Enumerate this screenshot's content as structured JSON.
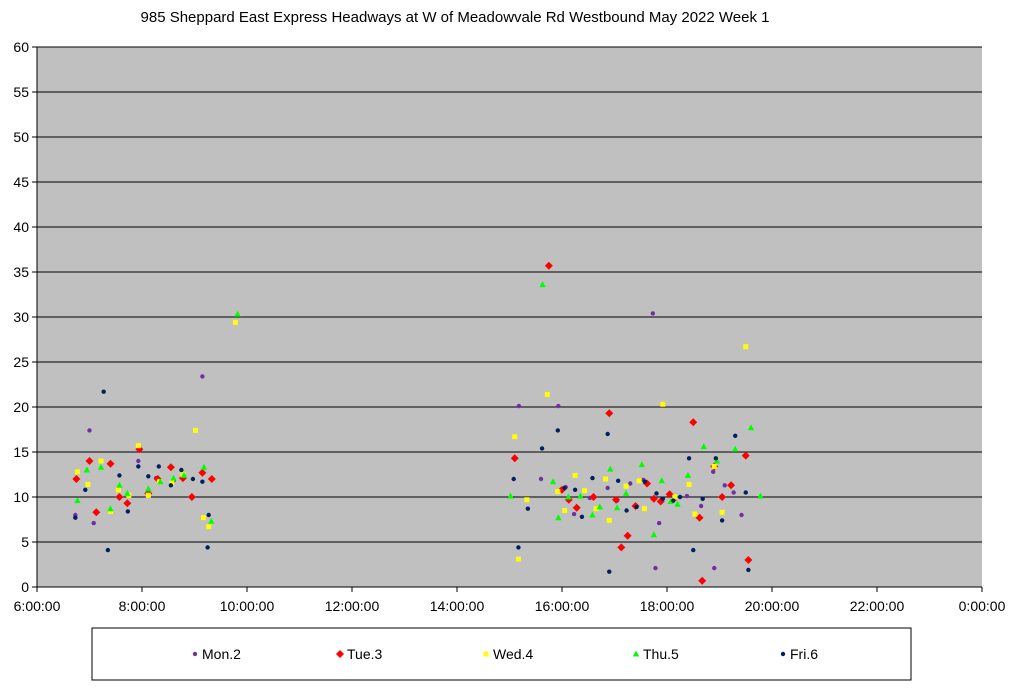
{
  "chart_data": {
    "type": "scatter",
    "title": "985 Sheppard East Express Headways at W of Meadowvale Rd Westbound May 2022  Week 1",
    "xlabel": "",
    "ylabel": "",
    "x_unit": "hours of day",
    "xlim": [
      6,
      24
    ],
    "ylim": [
      0,
      60
    ],
    "x_tick_values": [
      6,
      8,
      10,
      12,
      14,
      16,
      18,
      20,
      22,
      24
    ],
    "x_tick_labels": [
      "6:00:00",
      "8:00:00",
      "10:00:00",
      "12:00:00",
      "14:00:00",
      "16:00:00",
      "18:00:00",
      "20:00:00",
      "22:00:00",
      "0:00:00"
    ],
    "y_tick_values": [
      0,
      5,
      10,
      15,
      20,
      25,
      30,
      35,
      40,
      45,
      50,
      55,
      60
    ],
    "y_tick_labels": [
      "0",
      "5",
      "10",
      "15",
      "20",
      "25",
      "30",
      "35",
      "40",
      "45",
      "50",
      "55",
      "60"
    ],
    "grid": true,
    "legend_position": "bottom",
    "plot_background": "#c0c0c0",
    "series": [
      {
        "name": "Mon.2",
        "color": "#7030a0",
        "marker": "circle",
        "points": [
          [
            6.73,
            8.0
          ],
          [
            7.0,
            17.4
          ],
          [
            7.08,
            7.1
          ],
          [
            7.93,
            14.0
          ],
          [
            8.27,
            12.1
          ],
          [
            8.6,
            11.8
          ],
          [
            9.15,
            23.4
          ],
          [
            15.18,
            20.1
          ],
          [
            15.6,
            12.0
          ],
          [
            15.93,
            20.1
          ],
          [
            16.07,
            11.1
          ],
          [
            16.23,
            8.1
          ],
          [
            16.53,
            9.9
          ],
          [
            16.87,
            11.0
          ],
          [
            17.05,
            9.6
          ],
          [
            17.3,
            11.5
          ],
          [
            17.55,
            11.9
          ],
          [
            17.73,
            30.4
          ],
          [
            17.78,
            2.1
          ],
          [
            17.85,
            7.1
          ],
          [
            18.15,
            9.8
          ],
          [
            18.38,
            10.1
          ],
          [
            18.65,
            9.0
          ],
          [
            18.88,
            12.8
          ],
          [
            18.9,
            2.1
          ],
          [
            19.1,
            11.3
          ],
          [
            19.27,
            10.5
          ],
          [
            19.42,
            8.0
          ]
        ]
      },
      {
        "name": "Tue.3",
        "color": "#ff0000",
        "marker": "diamond",
        "points": [
          [
            6.75,
            12.0
          ],
          [
            7.0,
            14.0
          ],
          [
            7.13,
            8.3
          ],
          [
            7.4,
            13.7
          ],
          [
            7.57,
            10.0
          ],
          [
            7.72,
            9.3
          ],
          [
            7.95,
            15.3
          ],
          [
            8.12,
            10.4
          ],
          [
            8.3,
            12.0
          ],
          [
            8.55,
            13.3
          ],
          [
            8.78,
            12.1
          ],
          [
            8.95,
            10.0
          ],
          [
            9.15,
            12.7
          ],
          [
            9.33,
            12.0
          ],
          [
            15.1,
            14.3
          ],
          [
            15.75,
            35.7
          ],
          [
            16.0,
            10.8
          ],
          [
            16.13,
            9.7
          ],
          [
            16.28,
            8.8
          ],
          [
            16.6,
            10.0
          ],
          [
            16.9,
            19.3
          ],
          [
            17.03,
            9.7
          ],
          [
            17.13,
            4.4
          ],
          [
            17.25,
            5.7
          ],
          [
            17.4,
            9.0
          ],
          [
            17.62,
            11.5
          ],
          [
            17.75,
            9.8
          ],
          [
            17.88,
            9.5
          ],
          [
            18.05,
            10.3
          ],
          [
            18.5,
            18.3
          ],
          [
            18.62,
            7.7
          ],
          [
            18.67,
            0.7
          ],
          [
            18.9,
            13.4
          ],
          [
            19.05,
            10.0
          ],
          [
            19.22,
            11.3
          ],
          [
            19.5,
            14.6
          ],
          [
            19.55,
            3.0
          ]
        ]
      },
      {
        "name": "Wed.4",
        "color": "#ffff00",
        "marker": "square",
        "points": [
          [
            6.77,
            12.8
          ],
          [
            6.97,
            11.4
          ],
          [
            7.22,
            14.0
          ],
          [
            7.4,
            8.4
          ],
          [
            7.55,
            10.8
          ],
          [
            7.75,
            10.2
          ],
          [
            7.93,
            15.7
          ],
          [
            8.12,
            10.2
          ],
          [
            8.33,
            11.7
          ],
          [
            8.57,
            11.6
          ],
          [
            8.78,
            12.5
          ],
          [
            9.02,
            17.4
          ],
          [
            9.17,
            7.7
          ],
          [
            9.27,
            6.7
          ],
          [
            9.78,
            29.4
          ],
          [
            15.1,
            16.7
          ],
          [
            15.17,
            3.1
          ],
          [
            15.33,
            9.7
          ],
          [
            15.72,
            21.4
          ],
          [
            15.92,
            10.6
          ],
          [
            16.05,
            8.5
          ],
          [
            16.25,
            12.4
          ],
          [
            16.43,
            10.7
          ],
          [
            16.65,
            8.7
          ],
          [
            16.83,
            12.0
          ],
          [
            16.9,
            7.4
          ],
          [
            17.22,
            11.2
          ],
          [
            17.47,
            11.8
          ],
          [
            17.57,
            8.7
          ],
          [
            17.92,
            20.3
          ],
          [
            18.15,
            10.0
          ],
          [
            18.42,
            11.4
          ],
          [
            18.53,
            8.1
          ],
          [
            18.9,
            13.4
          ],
          [
            19.05,
            8.3
          ],
          [
            19.5,
            26.7
          ]
        ]
      },
      {
        "name": "Thu.5",
        "color": "#00ff00",
        "marker": "triangle",
        "points": [
          [
            6.77,
            9.6
          ],
          [
            6.95,
            13.0
          ],
          [
            7.22,
            13.3
          ],
          [
            7.4,
            8.7
          ],
          [
            7.57,
            11.3
          ],
          [
            7.72,
            10.4
          ],
          [
            8.12,
            10.9
          ],
          [
            8.35,
            11.7
          ],
          [
            8.6,
            12.1
          ],
          [
            8.8,
            12.4
          ],
          [
            9.18,
            13.3
          ],
          [
            9.32,
            7.3
          ],
          [
            9.82,
            30.3
          ],
          [
            15.02,
            10.1
          ],
          [
            15.63,
            33.6
          ],
          [
            15.83,
            11.7
          ],
          [
            15.93,
            7.7
          ],
          [
            16.12,
            10.0
          ],
          [
            16.35,
            10.1
          ],
          [
            16.58,
            8.0
          ],
          [
            16.72,
            8.9
          ],
          [
            16.92,
            13.1
          ],
          [
            17.05,
            8.8
          ],
          [
            17.22,
            10.4
          ],
          [
            17.52,
            13.6
          ],
          [
            17.75,
            5.8
          ],
          [
            17.9,
            11.8
          ],
          [
            18.07,
            9.5
          ],
          [
            18.2,
            9.2
          ],
          [
            18.4,
            12.4
          ],
          [
            18.7,
            15.6
          ],
          [
            18.95,
            14.0
          ],
          [
            19.3,
            15.3
          ],
          [
            19.6,
            17.7
          ],
          [
            19.78,
            10.1
          ]
        ]
      },
      {
        "name": "Fri.6",
        "color": "#002060",
        "marker": "circle",
        "points": [
          [
            6.73,
            7.7
          ],
          [
            6.92,
            10.8
          ],
          [
            7.27,
            21.7
          ],
          [
            7.35,
            4.1
          ],
          [
            7.57,
            12.4
          ],
          [
            7.73,
            8.4
          ],
          [
            7.93,
            13.4
          ],
          [
            8.12,
            12.3
          ],
          [
            8.32,
            13.4
          ],
          [
            8.55,
            11.3
          ],
          [
            8.75,
            13.0
          ],
          [
            8.97,
            12.0
          ],
          [
            9.15,
            11.7
          ],
          [
            9.25,
            4.4
          ],
          [
            9.27,
            8.0
          ],
          [
            15.08,
            12.0
          ],
          [
            15.17,
            4.4
          ],
          [
            15.35,
            8.7
          ],
          [
            15.62,
            15.4
          ],
          [
            15.92,
            17.4
          ],
          [
            16.05,
            11.0
          ],
          [
            16.25,
            10.8
          ],
          [
            16.38,
            7.8
          ],
          [
            16.58,
            12.1
          ],
          [
            16.87,
            17.0
          ],
          [
            16.9,
            1.7
          ],
          [
            17.07,
            11.8
          ],
          [
            17.23,
            8.5
          ],
          [
            17.42,
            8.9
          ],
          [
            17.58,
            11.7
          ],
          [
            17.8,
            10.4
          ],
          [
            17.92,
            9.8
          ],
          [
            18.12,
            9.6
          ],
          [
            18.25,
            10.0
          ],
          [
            18.42,
            14.3
          ],
          [
            18.5,
            4.1
          ],
          [
            18.68,
            9.8
          ],
          [
            18.93,
            14.3
          ],
          [
            19.05,
            7.4
          ],
          [
            19.3,
            16.8
          ],
          [
            19.5,
            10.5
          ],
          [
            19.55,
            1.9
          ]
        ]
      }
    ]
  }
}
